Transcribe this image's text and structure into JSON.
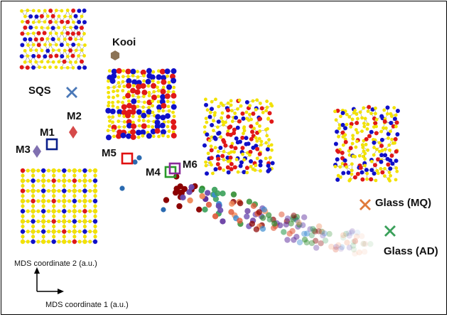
{
  "chart_data": {
    "type": "scatter",
    "xlabel": "MDS coordinate 1 (a.u.)",
    "ylabel": "MDS coordinate 2 (a.u.)",
    "colors": {
      "sqs": "#4a78b8",
      "kooi": "#8b7355",
      "m1": "#0a1f8a",
      "m2": "#d64a4a",
      "m3": "#8070b0",
      "m4": "#2a9a2a",
      "m5": "#e01010",
      "m6": "#8a2a9a",
      "glass_mq": "#e07a3a",
      "glass_ad": "#3aa05a",
      "atom_yellow": "#f2e200",
      "atom_red": "#e01818",
      "atom_blue": "#1010c8"
    },
    "labeled_points": [
      {
        "id": "sqs",
        "label": "SQS",
        "marker": "x",
        "color": "#4a78b8"
      },
      {
        "id": "kooi",
        "label": "Kooi",
        "marker": "hexagon",
        "color": "#8b7355"
      },
      {
        "id": "m1",
        "label": "M1",
        "marker": "open-square",
        "color": "#0a1f8a"
      },
      {
        "id": "m2",
        "label": "M2",
        "marker": "diamond",
        "color": "#d64a4a"
      },
      {
        "id": "m3",
        "label": "M3",
        "marker": "diamond",
        "color": "#8070b0"
      },
      {
        "id": "m4",
        "label": "M4",
        "marker": "open-square",
        "color": "#2a9a2a"
      },
      {
        "id": "m5",
        "label": "M5",
        "marker": "open-square",
        "color": "#e01010"
      },
      {
        "id": "m6",
        "label": "M6",
        "marker": "open-square",
        "color": "#8a2a9a"
      },
      {
        "id": "glass_mq",
        "label": "Glass (MQ)",
        "marker": "x",
        "color": "#e07a3a"
      },
      {
        "id": "glass_ad",
        "label": "Glass (AD)",
        "marker": "x",
        "color": "#3aa05a"
      }
    ],
    "trajectory_colors": [
      "#8b0000",
      "#2a8a2a",
      "#5a2a9a",
      "#e05a3a",
      "#3aa05a",
      "#6a4ab0",
      "#3a8ad0",
      "#f08a5a"
    ],
    "insets": [
      {
        "id": "inset-sqs-structure",
        "type": "atomic-structure-crystalline"
      },
      {
        "id": "inset-m3-structure",
        "type": "atomic-structure-cubic-lattice"
      },
      {
        "id": "inset-m5-structure",
        "type": "atomic-structure-distorted-lattice"
      },
      {
        "id": "inset-m6-structure",
        "type": "atomic-structure-disordered"
      },
      {
        "id": "inset-glass-structure",
        "type": "atomic-structure-amorphous"
      }
    ]
  },
  "axis_legend": {
    "y_label": "MDS coordinate 2 (a.u.)",
    "x_label": "MDS coordinate 1 (a.u.)"
  }
}
